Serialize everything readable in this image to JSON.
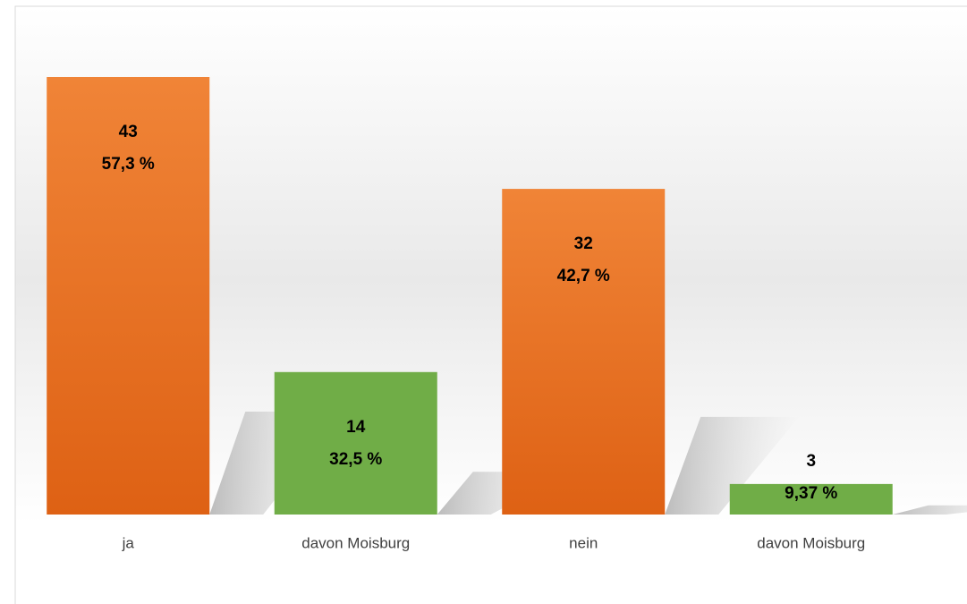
{
  "chart_data": {
    "type": "bar",
    "categories": [
      "ja",
      "davon Moisburg",
      "nein",
      "davon Moisburg"
    ],
    "values": [
      43,
      14,
      32,
      3
    ],
    "percentages": [
      57.3,
      32.5,
      42.7,
      9.37
    ],
    "percentage_labels": [
      "57,3 %",
      "32,5 %",
      "42,7 %",
      "9,37 %"
    ],
    "colors": [
      "#ed7d31",
      "#70ad47",
      "#ed7d31",
      "#70ad47"
    ]
  }
}
